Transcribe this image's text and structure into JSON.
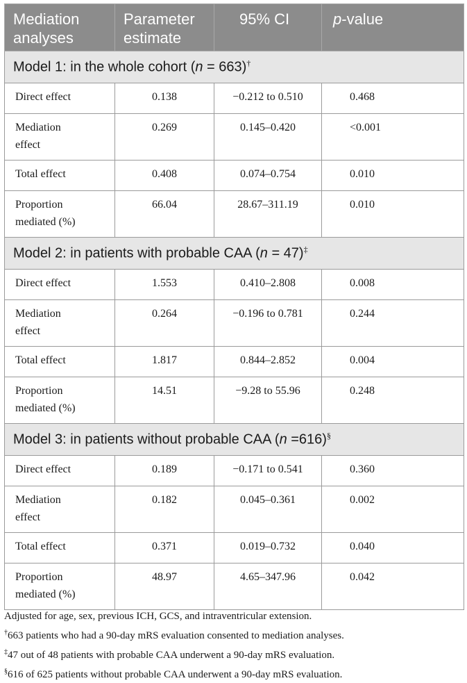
{
  "header": {
    "col1_line1": "Mediation",
    "col1_line2": "analyses",
    "col2_line1": "Parameter",
    "col2_line2": "estimate",
    "col3": "95% CI",
    "col4_italic": "p",
    "col4_rest": "-value"
  },
  "models": [
    {
      "title_pre": "Model 1: in the whole cohort (",
      "title_n_var": "n",
      "title_n_val": " = 663)",
      "title_mark": "†",
      "rows": [
        {
          "label": "Direct effect",
          "label2": "",
          "estimate": "0.138",
          "ci": "−0.212 to 0.510",
          "p": "0.468"
        },
        {
          "label": "Mediation",
          "label2": "effect",
          "estimate": "0.269",
          "ci": "0.145–0.420",
          "p": "<0.001"
        },
        {
          "label": "Total effect",
          "label2": "",
          "estimate": "0.408",
          "ci": "0.074–0.754",
          "p": "0.010"
        },
        {
          "label": "Proportion",
          "label2": "mediated (%)",
          "estimate": "66.04",
          "ci": "28.67–311.19",
          "p": "0.010"
        }
      ]
    },
    {
      "title_pre": "Model 2: in patients with probable CAA (",
      "title_n_var": "n",
      "title_n_val": " = 47)",
      "title_mark": "‡",
      "rows": [
        {
          "label": "Direct effect",
          "label2": "",
          "estimate": "1.553",
          "ci": "0.410–2.808",
          "p": "0.008"
        },
        {
          "label": "Mediation",
          "label2": "effect",
          "estimate": "0.264",
          "ci": "−0.196 to 0.781",
          "p": "0.244"
        },
        {
          "label": "Total effect",
          "label2": "",
          "estimate": "1.817",
          "ci": "0.844–2.852",
          "p": "0.004"
        },
        {
          "label": "Proportion",
          "label2": "mediated (%)",
          "estimate": "14.51",
          "ci": "−9.28 to 55.96",
          "p": "0.248"
        }
      ]
    },
    {
      "title_pre": "Model 3: in patients without probable CAA (",
      "title_n_var": "n",
      "title_n_val": " =616)",
      "title_mark": "§",
      "rows": [
        {
          "label": "Direct effect",
          "label2": "",
          "estimate": "0.189",
          "ci": "−0.171 to 0.541",
          "p": "0.360"
        },
        {
          "label": "Mediation",
          "label2": "effect",
          "estimate": "0.182",
          "ci": "0.045–0.361",
          "p": "0.002"
        },
        {
          "label": "Total effect",
          "label2": "",
          "estimate": "0.371",
          "ci": "0.019–0.732",
          "p": "0.040"
        },
        {
          "label": "Proportion",
          "label2": "mediated (%)",
          "estimate": "48.97",
          "ci": "4.65–347.96",
          "p": "0.042"
        }
      ]
    }
  ],
  "notes": {
    "adjusted": "Adjusted for age, sex, previous ICH, GCS, and intraventricular extension.",
    "n1_mark": "†",
    "n1_text": "663 patients who had a 90-day mRS evaluation consented to mediation analyses.",
    "n2_mark": "‡",
    "n2_text": "47 out of 48 patients with probable CAA underwent a 90-day mRS evaluation.",
    "n3_mark": "§",
    "n3_text": "616 of 625 patients without probable CAA underwent a 90-day mRS evaluation."
  }
}
